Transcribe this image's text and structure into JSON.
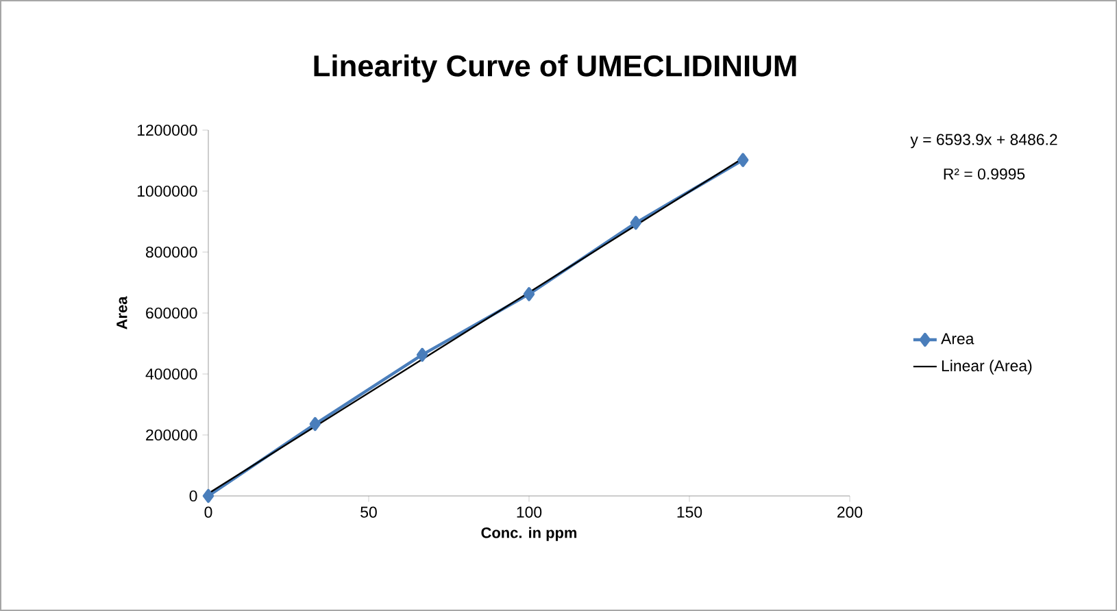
{
  "chart_data": {
    "type": "line",
    "title": "Linearity Curve of UMECLIDINIUM",
    "xlabel": "Conc. in ppm",
    "ylabel": "Area",
    "xlim": [
      0,
      200
    ],
    "xticks": [
      0,
      50,
      100,
      150,
      200
    ],
    "ylim": [
      0,
      1200000
    ],
    "yticks": [
      0,
      200000,
      400000,
      600000,
      800000,
      1000000,
      1200000
    ],
    "marker": "diamond",
    "legend": "right",
    "annotations": [
      "y = 6593.9x + 8486.2",
      "R² = 0.9995"
    ],
    "series": [
      {
        "name": "Area",
        "color": "#4a7ebb",
        "x": [
          0,
          33.3,
          66.7,
          100,
          133.3,
          166.7
        ],
        "values": [
          0,
          236000,
          463000,
          662000,
          896000,
          1102000
        ]
      },
      {
        "name": "Linear (Area)",
        "type": "line",
        "marker": "none",
        "color": "#000000",
        "x": [
          0,
          166.7
        ],
        "values": [
          8000,
          1108000
        ]
      }
    ]
  }
}
